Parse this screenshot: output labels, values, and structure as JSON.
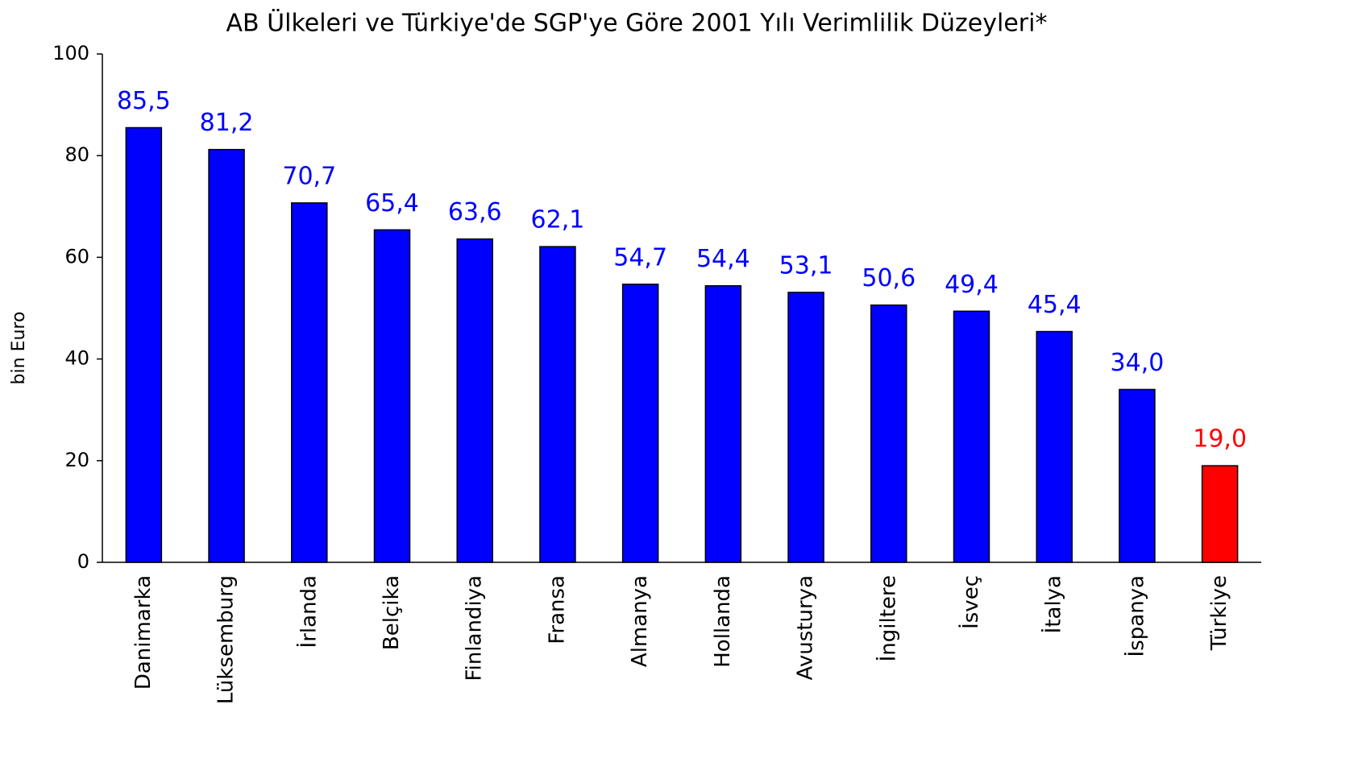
{
  "chart_data": {
    "type": "bar",
    "title": "AB Ülkeleri ve Türkiye'de SGP'ye Göre 2001 Yılı Verimlilik Düzeyleri*",
    "ylabel": "bin  Euro",
    "categories": [
      "Danimarka",
      "Lüksemburg",
      "İrlanda",
      "Belçika",
      "Finlandiya",
      "Fransa",
      "Almanya",
      "Hollanda",
      "Avusturya",
      "İngiltere",
      "İsveç",
      "İtalya",
      "İspanya",
      "Türkiye"
    ],
    "values": [
      85.5,
      81.2,
      70.7,
      65.4,
      63.6,
      62.1,
      54.7,
      54.4,
      53.1,
      50.6,
      49.4,
      45.4,
      34.0,
      19.0
    ],
    "value_labels": [
      "85,5",
      "81,2",
      "70,7",
      "65,4",
      "63,6",
      "62,1",
      "54,7",
      "54,4",
      "53,1",
      "50,6",
      "49,4",
      "45,4",
      "34,0",
      "19,0"
    ],
    "colors": [
      "#0000ff",
      "#0000ff",
      "#0000ff",
      "#0000ff",
      "#0000ff",
      "#0000ff",
      "#0000ff",
      "#0000ff",
      "#0000ff",
      "#0000ff",
      "#0000ff",
      "#0000ff",
      "#0000ff",
      "#ff0000"
    ],
    "ylim": [
      0,
      100
    ],
    "yticks": [
      0,
      20,
      40,
      60,
      80,
      100
    ],
    "grid": false
  }
}
